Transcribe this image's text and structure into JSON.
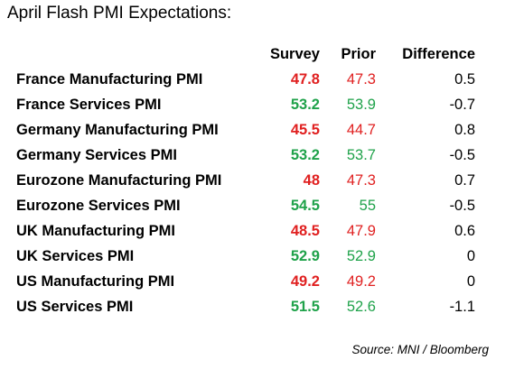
{
  "title": "April Flash PMI Expectations:",
  "headers": {
    "survey": "Survey",
    "prior": "Prior",
    "difference": "Difference"
  },
  "rows": [
    {
      "name": "France Manufacturing PMI",
      "survey": "47.8",
      "prior": "47.3",
      "difference": "0.5",
      "color": "up"
    },
    {
      "name": "France Services PMI",
      "survey": "53.2",
      "prior": "53.9",
      "difference": "-0.7",
      "color": "down"
    },
    {
      "name": "Germany Manufacturing PMI",
      "survey": "45.5",
      "prior": "44.7",
      "difference": "0.8",
      "color": "up"
    },
    {
      "name": "Germany Services PMI",
      "survey": "53.2",
      "prior": "53.7",
      "difference": "-0.5",
      "color": "down"
    },
    {
      "name": "Eurozone Manufacturing PMI",
      "survey": "48",
      "prior": "47.3",
      "difference": "0.7",
      "color": "up"
    },
    {
      "name": "Eurozone Services PMI",
      "survey": "54.5",
      "prior": "55",
      "difference": "-0.5",
      "color": "down"
    },
    {
      "name": "UK Manufacturing PMI",
      "survey": "48.5",
      "prior": "47.9",
      "difference": "0.6",
      "color": "up"
    },
    {
      "name": "UK Services PMI",
      "survey": "52.9",
      "prior": "52.9",
      "difference": "0",
      "color": "down"
    },
    {
      "name": "US Manufacturing PMI",
      "survey": "49.2",
      "prior": "49.2",
      "difference": "0",
      "color": "up"
    },
    {
      "name": "US Services PMI",
      "survey": "51.5",
      "prior": "52.6",
      "difference": "-1.1",
      "color": "down"
    }
  ],
  "colors": {
    "up": "#E02020",
    "down": "#1FA24A"
  },
  "source": "Source: MNI / Bloomberg"
}
